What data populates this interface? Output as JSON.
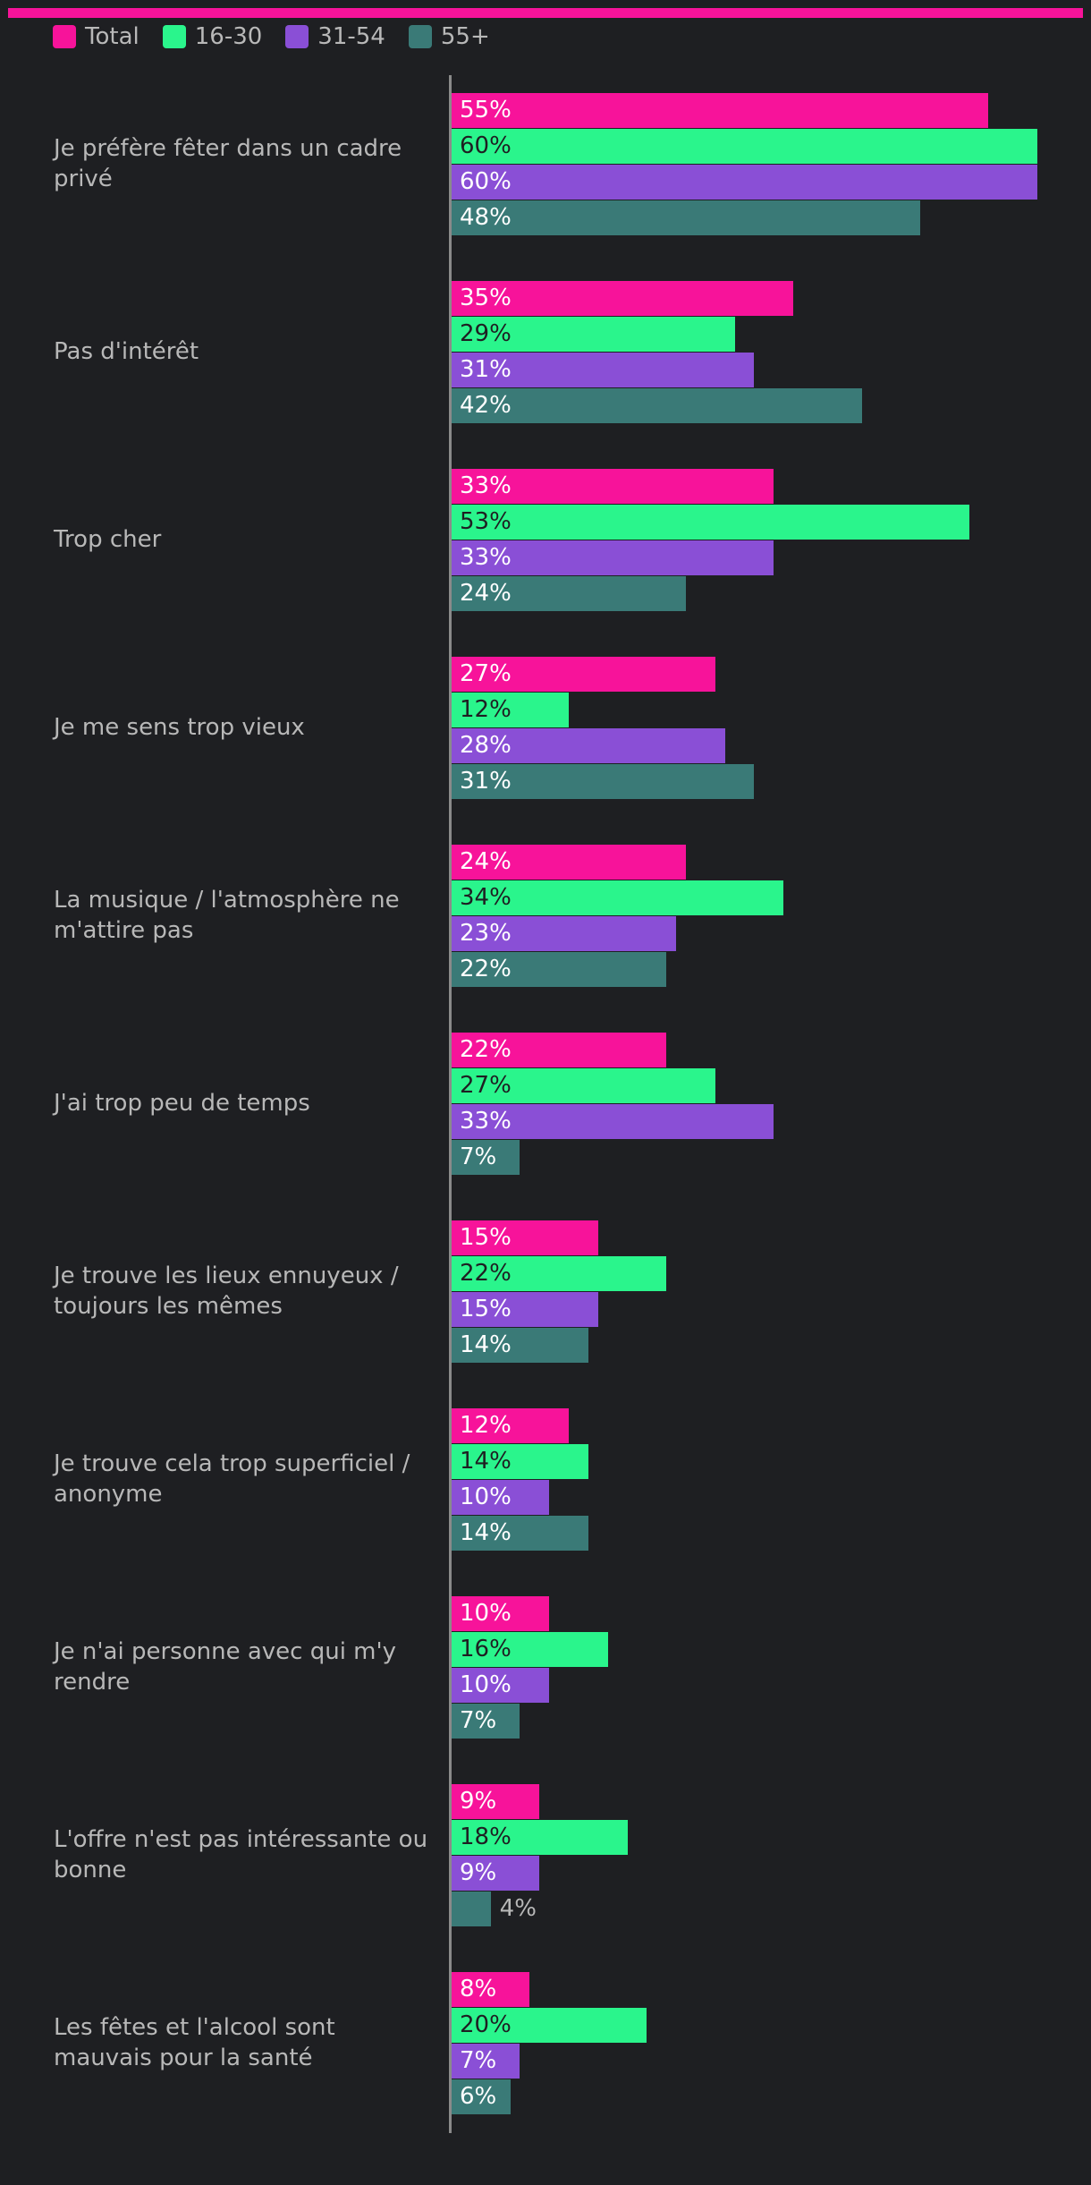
{
  "chart_data": {
    "type": "bar",
    "orientation": "horizontal",
    "xlim": [
      0,
      60
    ],
    "categories": [
      "Je préfère fêter dans un cadre privé",
      "Pas d'intérêt",
      "Trop cher",
      "Je me sens trop vieux",
      "La musique / l'atmosphère ne m'attire pas",
      "J'ai trop peu de temps",
      "Je trouve les lieux ennuyeux / toujours les mêmes",
      "Je trouve cela trop superficiel / anonyme",
      "Je n'ai personne avec qui m'y rendre",
      "L'offre n'est pas intéressante ou bonne",
      "Les fêtes et l'alcool sont mauvais pour la santé"
    ],
    "series": [
      {
        "name": "Total",
        "color": "#f7139a",
        "values": [
          55,
          35,
          33,
          27,
          24,
          22,
          15,
          12,
          10,
          9,
          8
        ],
        "value_labels": [
          "55%",
          "35%",
          "33%",
          "27%",
          "24%",
          "22%",
          "15%",
          "12%",
          "10%",
          "9%",
          "8%"
        ]
      },
      {
        "name": "16-30",
        "color": "#2af58c",
        "values": [
          60,
          29,
          53,
          12,
          34,
          27,
          22,
          14,
          16,
          18,
          20
        ],
        "value_labels": [
          "60%",
          "29%",
          "53%",
          "12%",
          "34%",
          "27%",
          "22%",
          "14%",
          "16%",
          "18%",
          "20%"
        ]
      },
      {
        "name": "31-54",
        "color": "#8a4fd6",
        "values": [
          60,
          31,
          33,
          28,
          23,
          33,
          15,
          10,
          10,
          9,
          7
        ],
        "value_labels": [
          "60%",
          "31%",
          "33%",
          "28%",
          "23%",
          "33%",
          "15%",
          "10%",
          "10%",
          "9%",
          "7%"
        ]
      },
      {
        "name": "55+",
        "color": "#3a7a77",
        "values": [
          48,
          42,
          24,
          31,
          22,
          7,
          14,
          14,
          7,
          4,
          6
        ],
        "value_labels": [
          "48%",
          "42%",
          "24%",
          "31%",
          "22%",
          "7%",
          "14%",
          "14%",
          "7%",
          "4%",
          "6%"
        ]
      }
    ]
  }
}
